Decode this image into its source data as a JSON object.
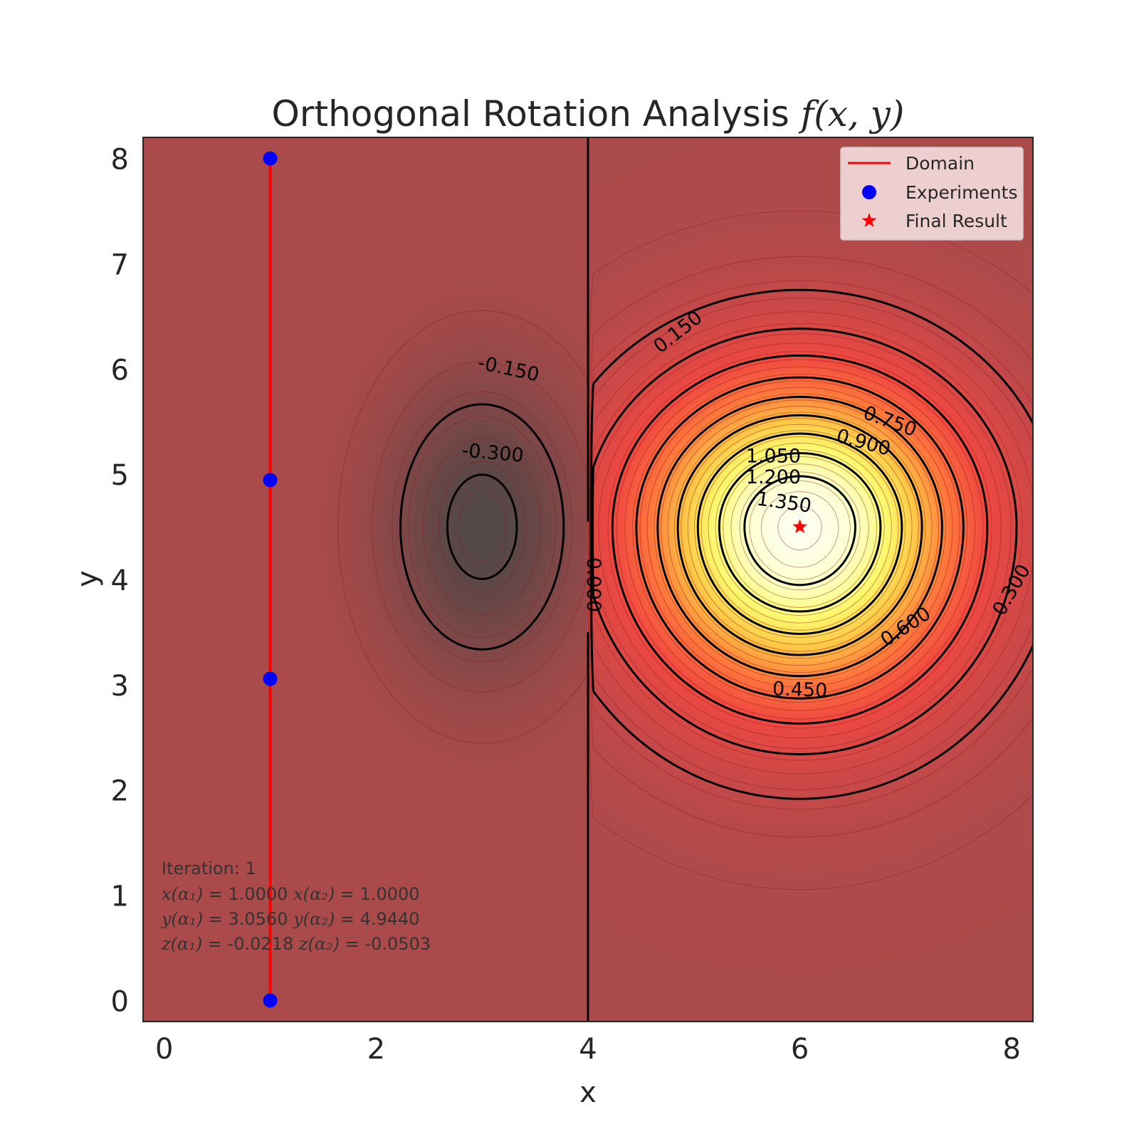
{
  "chart_data": {
    "type": "contour",
    "title_text": "Orthogonal Rotation Analysis ",
    "title_math": "f(x, y)",
    "xlabel": "x",
    "ylabel": "y",
    "xlim": [
      -0.2,
      8.2
    ],
    "ylim": [
      -0.2,
      8.2
    ],
    "xticks": [
      0,
      2,
      4,
      6,
      8
    ],
    "yticks": [
      0,
      1,
      2,
      3,
      4,
      5,
      6,
      7,
      8
    ],
    "function": {
      "positive_peak": {
        "x": 6.0,
        "y": 4.5,
        "value": 1.5
      },
      "negative_peak": {
        "x": 3.0,
        "y": 4.5,
        "value": -0.35
      }
    },
    "contour_levels": [
      -0.3,
      -0.15,
      0.0,
      0.15,
      0.3,
      0.45,
      0.6,
      0.75,
      0.9,
      1.05,
      1.2,
      1.35
    ],
    "contour_labels": [
      {
        "text": "-0.150",
        "x": 3.25,
        "y": 6.0,
        "angle": 12
      },
      {
        "text": "-0.300",
        "x": 3.1,
        "y": 5.2,
        "angle": 5
      },
      {
        "text": "0.000",
        "x": 4.05,
        "y": 3.95,
        "angle": 90
      },
      {
        "text": "0.150",
        "x": 4.85,
        "y": 6.35,
        "angle": -38
      },
      {
        "text": "0.300",
        "x": 8.0,
        "y": 3.9,
        "angle": -60
      },
      {
        "text": "0.450",
        "x": 6.0,
        "y": 2.95,
        "angle": 2
      },
      {
        "text": "0.600",
        "x": 7.0,
        "y": 3.55,
        "angle": -33
      },
      {
        "text": "0.750",
        "x": 6.85,
        "y": 5.5,
        "angle": 20
      },
      {
        "text": "0.900",
        "x": 6.6,
        "y": 5.3,
        "angle": 15
      },
      {
        "text": "1.050",
        "x": 5.75,
        "y": 5.17,
        "angle": 0
      },
      {
        "text": "1.200",
        "x": 5.75,
        "y": 4.97,
        "angle": 0
      },
      {
        "text": "1.350",
        "x": 5.85,
        "y": 4.73,
        "angle": 8
      }
    ],
    "domain_line": {
      "name": "Domain",
      "x": [
        1.0,
        1.0
      ],
      "y": [
        0.0,
        8.0
      ],
      "color": "#ff0000"
    },
    "experiments": {
      "name": "Experiments",
      "x": [
        1.0,
        1.0,
        1.0,
        1.0
      ],
      "y": [
        0.0,
        3.056,
        4.944,
        8.0
      ],
      "color": "#0000ff"
    },
    "final_result": {
      "name": "Final Result",
      "x": 6.0,
      "y": 4.5,
      "color": "#ff0000"
    },
    "separator_line": {
      "x": 4.0
    },
    "legend": {
      "location": "upper-right",
      "entries": [
        "Domain",
        "Experiments",
        "Final Result"
      ]
    },
    "info_box": {
      "location": "lower-left",
      "iteration": "Iteration: 1",
      "x_line": {
        "a1": "x(α₁)",
        "v1": " = 1.0000 ",
        "a2": "x(α₂)",
        "v2": " = 1.0000"
      },
      "y_line": {
        "a1": "y(α₁)",
        "v1": " = 3.0560 ",
        "a2": "y(α₂)",
        "v2": " = 4.9440"
      },
      "z_line": {
        "a1": "z(α₁)",
        "v1": " = -0.0218 ",
        "a2": "z(α₂)",
        "v2": " = -0.0503"
      }
    }
  }
}
